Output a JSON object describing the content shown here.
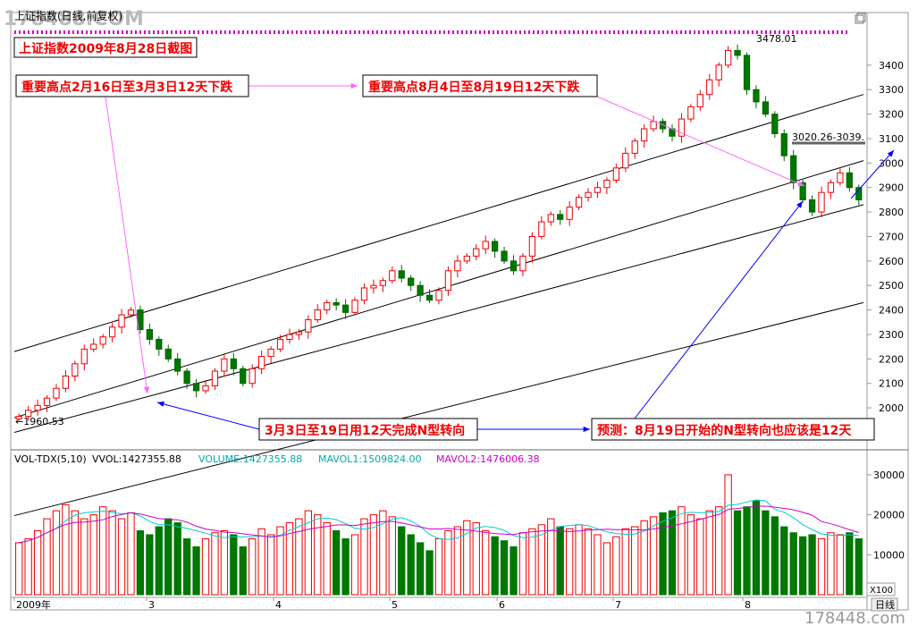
{
  "watermark_top": "178488.COM",
  "watermark_bottom": "178448.com",
  "window_title": "上证指数(日线,前复权)",
  "subtitle": "上证指数2009年8月28日截图",
  "annotations": {
    "top_left": "重要高点2月16日至3月3日12天下跌",
    "top_right": "重要高点8月4日至8月19日12天下跌",
    "bottom_left": "3月3日至19日用12天完成N型转向",
    "bottom_right": "预测：8月19日开始的N型转向也应该是12天"
  },
  "labels": {
    "high": "3478.01",
    "low": "←1960.53",
    "range": "3020.26-3039."
  },
  "vol_header": {
    "name": "VOL-TDX(5,10)",
    "vvol": "VVOL:1427355.88",
    "volume": "VOLUME:1427355.88",
    "mavol1": "MAVOL1:1509824.00",
    "mavol2": "MAVOL2:1476006.38"
  },
  "vol_unit": "X100",
  "period_button": "日线",
  "x_axis_labels": [
    "2009年",
    "3",
    "4",
    "5",
    "6",
    "7",
    "8"
  ],
  "chart_data": [
    {
      "type": "candlestick",
      "title": "上证指数(日线,前复权)",
      "y_ticks": [
        2000,
        2100,
        2200,
        2300,
        2400,
        2500,
        2600,
        2700,
        2800,
        2900,
        3000,
        3100,
        3200,
        3300,
        3400
      ],
      "ylim": [
        1920,
        3520
      ],
      "series_close": [
        1965,
        1990,
        2010,
        2040,
        2080,
        2130,
        2180,
        2240,
        2260,
        2290,
        2330,
        2380,
        2400,
        2320,
        2280,
        2240,
        2200,
        2150,
        2100,
        2070,
        2090,
        2150,
        2200,
        2160,
        2100,
        2160,
        2210,
        2240,
        2280,
        2300,
        2310,
        2360,
        2400,
        2430,
        2420,
        2390,
        2440,
        2490,
        2500,
        2520,
        2560,
        2530,
        2500,
        2460,
        2440,
        2480,
        2560,
        2600,
        2620,
        2650,
        2680,
        2640,
        2600,
        2560,
        2620,
        2700,
        2760,
        2790,
        2770,
        2820,
        2860,
        2880,
        2900,
        2930,
        2980,
        3040,
        3090,
        3140,
        3170,
        3140,
        3110,
        3180,
        3230,
        3280,
        3340,
        3400,
        3460,
        3440,
        3300,
        3250,
        3200,
        3120,
        3030,
        2920,
        2850,
        2800,
        2880,
        2920,
        2960,
        2900,
        2850
      ]
    },
    {
      "type": "bar",
      "title": "VOL-TDX(5,10)",
      "y_ticks": [
        10000,
        20000,
        30000
      ],
      "ylim": [
        0,
        32000
      ],
      "series": [
        {
          "name": "VOLUME",
          "values": [
            13000,
            14000,
            16000,
            19000,
            21000,
            22500,
            21000,
            19000,
            20000,
            22000,
            21000,
            19000,
            20500,
            16000,
            15000,
            17000,
            19000,
            18000,
            14000,
            12000,
            14000,
            15500,
            16000,
            15000,
            12000,
            14000,
            16500,
            15000,
            17000,
            18000,
            19000,
            21000,
            20000,
            18000,
            16000,
            14000,
            15000,
            19000,
            20000,
            21000,
            19500,
            17000,
            15000,
            13000,
            11000,
            14000,
            16000,
            17000,
            18500,
            18000,
            16000,
            14500,
            13500,
            12000,
            15500,
            16500,
            17500,
            19000,
            17000,
            16500,
            17500,
            16500,
            15000,
            13000,
            14500,
            16500,
            17000,
            18500,
            19500,
            20500,
            21000,
            22000,
            20000,
            19000,
            21000,
            22000,
            30000,
            21000,
            22000,
            23500,
            21000,
            19500,
            17000,
            15500,
            14500,
            15000,
            14000,
            15500,
            15000,
            15500,
            14000
          ]
        }
      ]
    }
  ]
}
